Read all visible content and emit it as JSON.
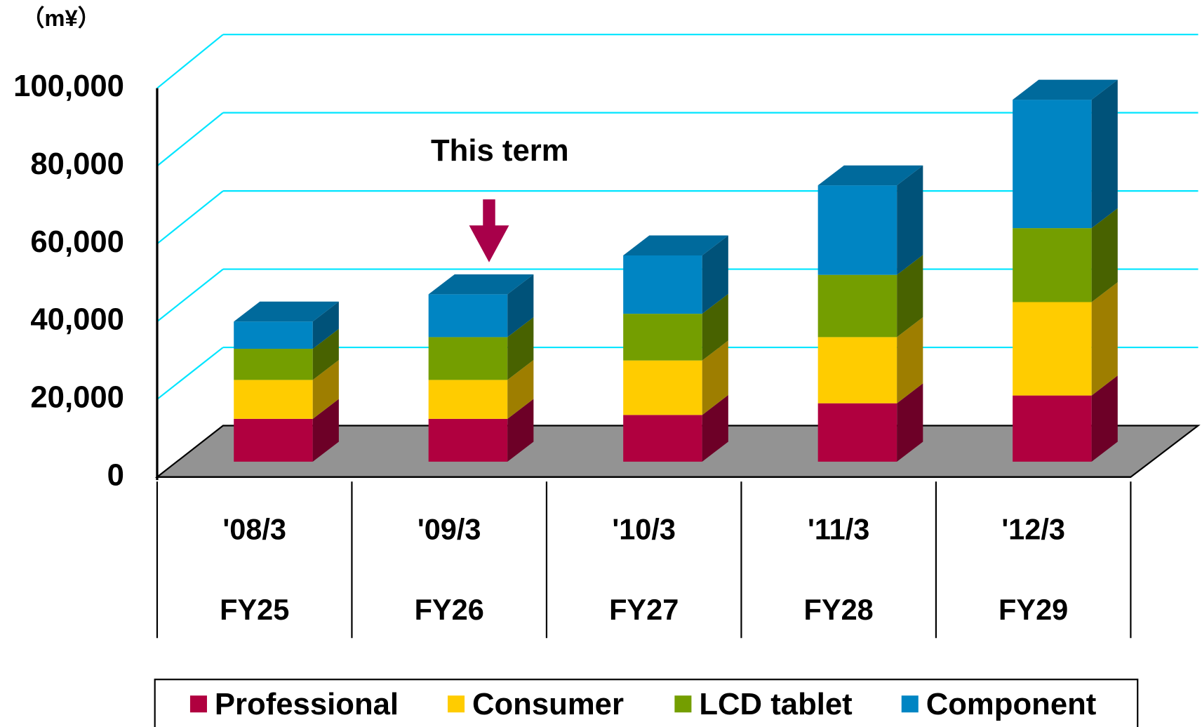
{
  "chart_data": {
    "type": "bar3d_stacked",
    "y_axis_label": "（m¥）",
    "annotation": "This term",
    "categories": [
      "'08/3",
      "'09/3",
      "'10/3",
      "'11/3",
      "'12/3"
    ],
    "categories_secondary": [
      "FY25",
      "FY26",
      "FY27",
      "FY28",
      "FY29"
    ],
    "series": [
      {
        "name": "Professional",
        "color": "#b0003f",
        "values": [
          11000,
          11000,
          12000,
          15000,
          17000
        ]
      },
      {
        "name": "Consumer",
        "color": "#ffcc00",
        "values": [
          10000,
          10000,
          14000,
          17000,
          24000
        ]
      },
      {
        "name": "LCD tablet",
        "color": "#749e00",
        "values": [
          8000,
          11000,
          12000,
          16000,
          19000
        ]
      },
      {
        "name": "Component",
        "color": "#0085c3",
        "values": [
          7000,
          11000,
          15000,
          23000,
          33000
        ]
      }
    ],
    "ylim": [
      0,
      100000
    ],
    "yticks": [
      0,
      {
        "value": 20000,
        "label": "20,000"
      },
      {
        "value": 40000,
        "label": "40,000"
      },
      {
        "value": 60000,
        "label": "60,000"
      },
      {
        "value": 80000,
        "label": "80,000"
      },
      {
        "value": 100000,
        "label": "100,000"
      }
    ],
    "grid": true,
    "legend": "bottom"
  }
}
